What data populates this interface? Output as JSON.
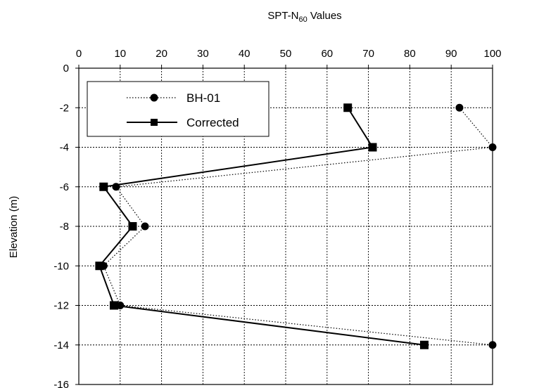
{
  "chart_data": {
    "type": "line",
    "title": {
      "main": "SPT-N",
      "sub": "60",
      "suffix": " Values"
    },
    "xlabel": "",
    "ylabel": "Elevation (m)",
    "xlim": [
      0,
      100
    ],
    "ylim": [
      -16,
      0
    ],
    "x_ticks": [
      0,
      10,
      20,
      30,
      40,
      50,
      60,
      70,
      80,
      90,
      100
    ],
    "y_ticks": [
      0,
      -2,
      -4,
      -6,
      -8,
      -10,
      -12,
      -14,
      -16
    ],
    "x_axis_position": "top",
    "grid": true,
    "legend_position": "top-left",
    "series": [
      {
        "name": "BH-01",
        "marker": "circle",
        "line": "dotted",
        "points": [
          {
            "x": 92,
            "y": -2
          },
          {
            "x": 100,
            "y": -4
          },
          {
            "x": 9,
            "y": -6
          },
          {
            "x": 16,
            "y": -8
          },
          {
            "x": 6,
            "y": -10
          },
          {
            "x": 10,
            "y": -12
          },
          {
            "x": 100,
            "y": -14
          }
        ]
      },
      {
        "name": "Corrected",
        "marker": "square",
        "line": "solid",
        "points": [
          {
            "x": 65,
            "y": -2
          },
          {
            "x": 71,
            "y": -4
          },
          {
            "x": 6,
            "y": -6
          },
          {
            "x": 13,
            "y": -8
          },
          {
            "x": 5,
            "y": -10
          },
          {
            "x": 8.5,
            "y": -12
          },
          {
            "x": 83.5,
            "y": -14
          }
        ]
      }
    ]
  }
}
